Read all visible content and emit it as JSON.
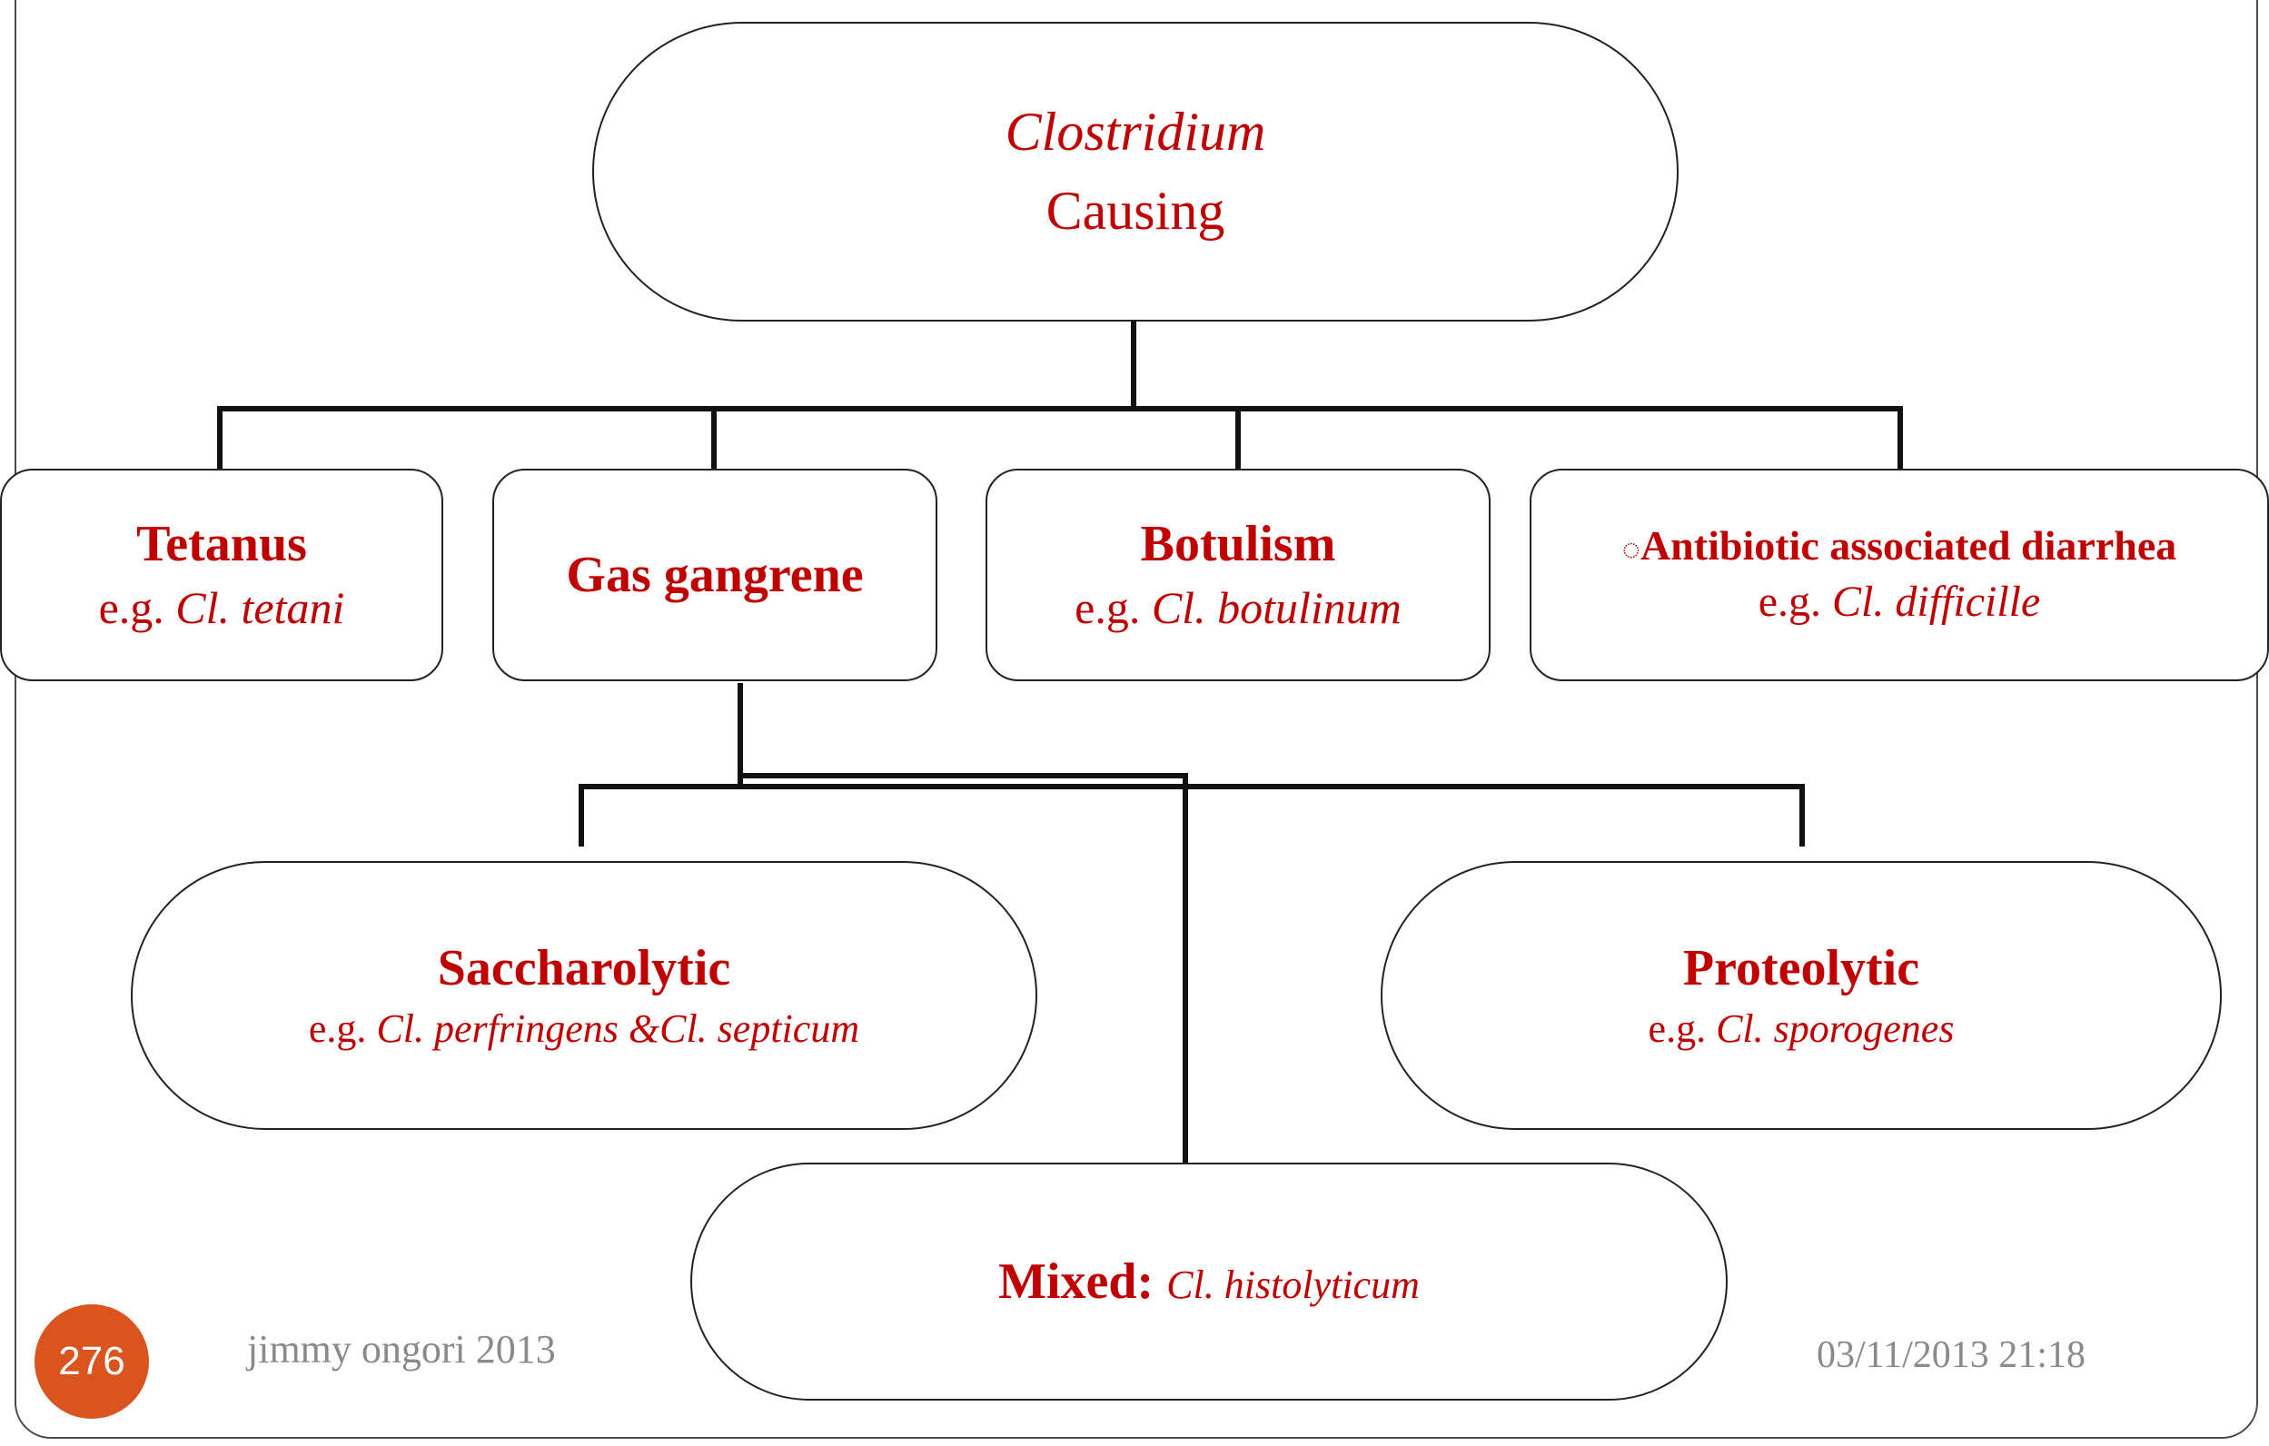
{
  "root": {
    "line1": "Clostridium",
    "line2": "Causing"
  },
  "level1": [
    {
      "name": "Tetanus",
      "eg_prefix": "e.g. ",
      "eg_species": "Cl. tetani"
    },
    {
      "name": "Gas gangrene"
    },
    {
      "name": "Botulism",
      "eg_prefix": "e.g. ",
      "eg_species": "Cl. botulinum"
    },
    {
      "bullet": "◌",
      "name": "Antibiotic associated diarrhea",
      "eg_prefix": "e.g. ",
      "eg_species": "Cl. difficille"
    }
  ],
  "gas_gangrene_types": [
    {
      "name": "Saccharolytic",
      "eg_prefix": "e.g. ",
      "eg_species": "Cl. perfringens &Cl. septicum"
    },
    {
      "name": "Proteolytic",
      "eg_prefix": "e.g. ",
      "eg_species": "Cl. sporogenes"
    },
    {
      "name": "Mixed:",
      "eg_species": "Cl. histolyticum"
    }
  ],
  "footer": {
    "slide_number": "276",
    "author": "jimmy ongori 2013",
    "datetime": "03/11/2013 21:18"
  },
  "colors": {
    "text": "#c00000",
    "slide_number_bg": "#d9541e",
    "footer_text": "#8a8a8a"
  }
}
